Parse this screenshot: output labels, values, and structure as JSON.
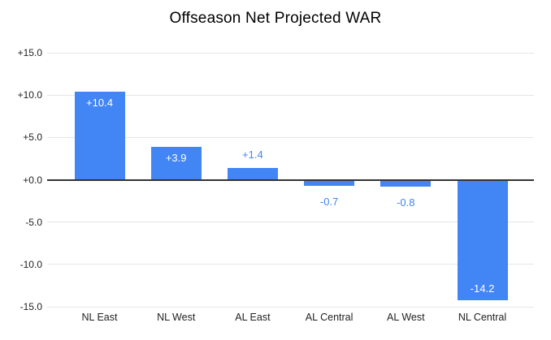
{
  "chart_data": {
    "type": "bar",
    "title": "Offseason Net Projected WAR",
    "categories": [
      "NL East",
      "NL West",
      "AL East",
      "AL Central",
      "AL West",
      "NL Central"
    ],
    "values": [
      10.4,
      3.9,
      1.4,
      -0.7,
      -0.8,
      -14.2
    ],
    "value_labels": [
      "+10.4",
      "+3.9",
      "+1.4",
      "-0.7",
      "-0.8",
      "-14.2"
    ],
    "xlabel": "",
    "ylabel": "",
    "ylim": [
      -15,
      15
    ],
    "y_ticks": [
      15,
      10,
      5,
      0,
      -5,
      -10,
      -15
    ],
    "y_tick_labels": [
      "+15.0",
      "+10.0",
      "+5.0",
      "+0.0",
      "-5.0",
      "-10.0",
      "-15.0"
    ],
    "grid": true,
    "legend": "none",
    "colors": {
      "bar": "#4285f4",
      "label_inside": "#ffffff",
      "label_outside": "#4285f4",
      "gridline": "#e6e6e6",
      "baseline": "#333333",
      "axis_text": "#222222",
      "title_text": "#000000",
      "background": "#ffffff"
    }
  }
}
